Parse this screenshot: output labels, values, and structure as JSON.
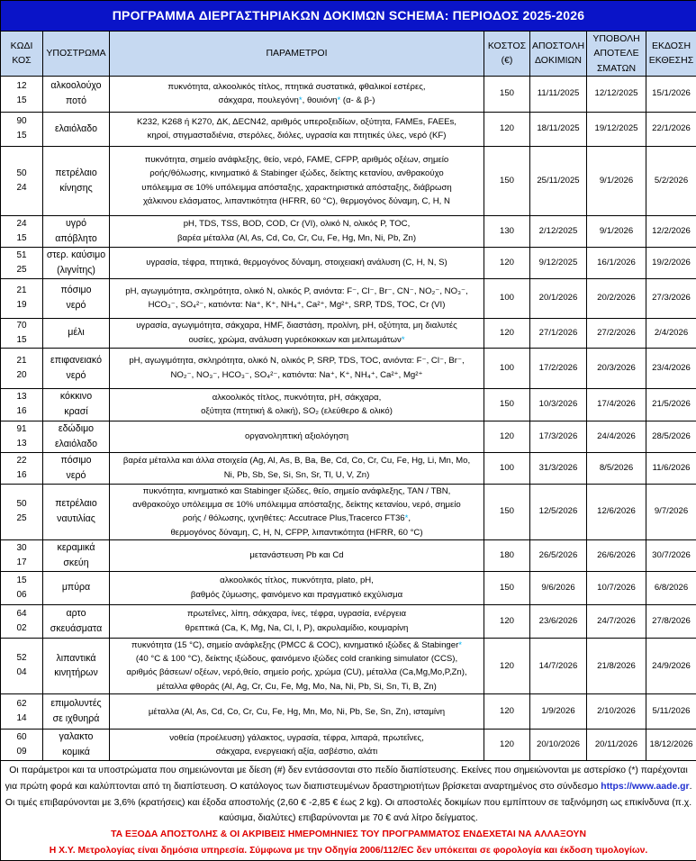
{
  "title": "ΠΡΟΓΡΑΜΜΑ ΔΙΕΡΓΑΣΤΗΡΙΑΚΩΝ ΔΟΚΙΜΩΝ SCHEMA: ΠΕΡΙΟΔΟΣ 2025-2026",
  "headers": {
    "code": [
      "ΚΩΔΙ",
      "ΚΟΣ"
    ],
    "substrate": "ΥΠΟΣΤΡΩΜΑ",
    "params": "ΠΑΡΑΜΕΤΡΟΙ",
    "cost": [
      "ΚΟΣΤΟΣ",
      "(€)"
    ],
    "dispatch": [
      "ΑΠΟΣΤΟΛΗ",
      "ΔΟΚΙΜΙΩΝ"
    ],
    "submit": [
      "ΥΠΟΒΟΛΗ",
      "ΑΠΟΤΕΛΕ",
      "ΣΜΑΤΩΝ"
    ],
    "report": [
      "ΕΚΔΟΣΗ",
      "ΕΚΘΕΣΗΣ"
    ]
  },
  "rows": [
    {
      "code": [
        "12",
        "15"
      ],
      "substrate": [
        "αλκοολούχο",
        "ποτό"
      ],
      "params": [
        "πυκνότητα, αλκοολικός τίτλος, πτητικά συστατικά, φθαλικοί εστέρες,",
        "σάκχαρα, πουλεγόνη*, θουιόνη* (α- & β-)"
      ],
      "cost": "150",
      "dispatch": "11/11/2025",
      "submit": "12/12/2025",
      "report": "15/1/2026"
    },
    {
      "code": [
        "90",
        "15"
      ],
      "substrate": [
        "ελαιόλαδο"
      ],
      "params": [
        "K232, K268 ή K270, ΔΚ, ΔECN42, αριθμός υπεροξειδίων, οξύτητα, FAMEs, FAEEs,",
        "κηροί, στιγμασταδιένια, στερόλες, διόλες, υγρασία και πτητικές ύλες, νερό (KF)"
      ],
      "cost": "120",
      "dispatch": "18/11/2025",
      "submit": "19/12/2025",
      "report": "22/1/2026"
    },
    {
      "code": [
        "50",
        "24"
      ],
      "substrate": [
        "πετρέλαιο",
        "κίνησης"
      ],
      "params": [
        "πυκνότητα, σημείο ανάφλεξης, θείο, νερό, FAME, CFPP, αριθμός οξέων, σημείο",
        "ροής/θόλωσης, κινηματικό & Stabinger ιξώδες, δείκτης κετανίου, ανθρακούχο",
        "υπόλειμμα σε 10% υπόλειμμα απόσταξης, χαρακτηριστικά απόσταξης, διάβρωση",
        "χάλκινου ελάσματος, λιπαντικότητα (HFRR, 60 °C), θερμογόνος δύναμη, C, H, N"
      ],
      "cost": "150",
      "dispatch": "25/11/2025",
      "submit": "9/1/2026",
      "report": "5/2/2026"
    },
    {
      "code": [
        "24",
        "15"
      ],
      "substrate": [
        "υγρό",
        "απόβλητο"
      ],
      "params": [
        "pH, TDS, TSS, BOD, COD, Cr (VI), ολικό N, ολικός P, TOC,",
        "βαρέα μέταλλα (Al, As, Cd, Co, Cr, Cu, Fe, Hg, Mn, Ni, Pb, Zn)"
      ],
      "cost": "130",
      "dispatch": "2/12/2025",
      "submit": "9/1/2026",
      "report": "12/2/2026"
    },
    {
      "code": [
        "51",
        "25"
      ],
      "substrate": [
        "στερ. καύσιμο",
        "(λιγνίτης)"
      ],
      "params": [
        "υγρασία, τέφρα, πτητικά, θερμογόνος δύναμη, στοιχειακή ανάλυση (C, H, N, S)"
      ],
      "cost": "120",
      "dispatch": "9/12/2025",
      "submit": "16/1/2026",
      "report": "19/2/2026"
    },
    {
      "code": [
        "21",
        "19"
      ],
      "substrate": [
        "πόσιμο",
        "νερό"
      ],
      "params": [
        "pH, αγωγιμότητα, σκληρότητα, ολικό N, ολικός P, ανιόντα: F⁻, Cl⁻, Br⁻, CN⁻, NO₂⁻, NO₃⁻,",
        "HCO₃⁻, SO₄²⁻, κατιόντα: Na⁺, K⁺, NH₄⁺, Ca²⁺, Mg²⁺, SRP, TDS, TOC, Cr (VI)"
      ],
      "cost": "100",
      "dispatch": "20/1/2026",
      "submit": "20/2/2026",
      "report": "27/3/2026"
    },
    {
      "code": [
        "70",
        "15"
      ],
      "substrate": [
        "μέλι"
      ],
      "params": [
        "υγρασία, αγωγιμότητα, σάκχαρα, HMF, διαστάση, προλίνη,  pH, οξύτητα, μη διαλυτές",
        "ουσίες, χρώμα, ανάλυση γυρεόκοκκων και μελιτωμάτων*"
      ],
      "cost": "120",
      "dispatch": "27/1/2026",
      "submit": "27/2/2026",
      "report": "2/4/2026"
    },
    {
      "code": [
        "21",
        "20"
      ],
      "substrate": [
        "επιφανειακό",
        "νερό"
      ],
      "params": [
        "pH, αγωγιμότητα, σκληρότητα, ολικό N, ολικός P, SRP, TDS, TOC, ανιόντα: F⁻, Cl⁻, Br⁻,",
        "NO₂⁻, NO₃⁻, HCO₃⁻, SO₄²⁻, κατιόντα: Na⁺, K⁺, NH₄⁺, Ca²⁺, Mg²⁺"
      ],
      "cost": "100",
      "dispatch": "17/2/2026",
      "submit": "20/3/2026",
      "report": "23/4/2026"
    },
    {
      "code": [
        "13",
        "16"
      ],
      "substrate": [
        "κόκκινο",
        "κρασί"
      ],
      "params": [
        "αλκοολικός τίτλος, πυκνότητα, pH, σάκχαρα,",
        "οξύτητα (πτητική & ολική), SO₂ (ελεύθερο & ολικό)"
      ],
      "cost": "150",
      "dispatch": "10/3/2026",
      "submit": "17/4/2026",
      "report": "21/5/2026"
    },
    {
      "code": [
        "91",
        "13"
      ],
      "substrate": [
        "εδώδιμο",
        "ελαιόλαδο"
      ],
      "params": [
        "οργανοληπτική αξιολόγηση"
      ],
      "cost": "120",
      "dispatch": "17/3/2026",
      "submit": "24/4/2026",
      "report": "28/5/2026"
    },
    {
      "code": [
        "22",
        "16"
      ],
      "substrate": [
        "πόσιμο",
        "νερό"
      ],
      "params": [
        "βαρέα μέταλλα και άλλα στοιχεία (Ag, Al, As, B, Ba, Be, Cd, Co, Cr, Cu, Fe, Hg, Li, Mn, Mo,",
        "Ni, Pb, Sb, Se, Si, Sn, Sr, Tl, U, V, Zn)"
      ],
      "cost": "100",
      "dispatch": "31/3/2026",
      "submit": "8/5/2026",
      "report": "11/6/2026"
    },
    {
      "code": [
        "50",
        "25"
      ],
      "substrate": [
        "πετρέλαιο",
        "ναυτιλίας"
      ],
      "params": [
        "πυκνότητα, κινηματικό και Stabinger ιξώδες, θείο, σημείο ανάφλεξης, TAN / TBN,",
        "ανθρακούχο υπόλειμμα σε 10% υπόλειμμα απόσταξης, δείκτης κετανίου, νερό, σημείο",
        "ροής / θόλωσης, ιχνηθέτες: Accutrace Plus,Tracerco FT36*,",
        "θερμογόνος δύναμη, C, H, N, CFPP, λιπαντικότητα (HFRR, 60 °C)"
      ],
      "cost": "150",
      "dispatch": "12/5/2026",
      "submit": "12/6/2026",
      "report": "9/7/2026"
    },
    {
      "code": [
        "30",
        "17"
      ],
      "substrate": [
        "κεραμικά",
        "σκεύη"
      ],
      "params": [
        "μετανάστευση Pb και Cd"
      ],
      "cost": "180",
      "dispatch": "26/5/2026",
      "submit": "26/6/2026",
      "report": "30/7/2026"
    },
    {
      "code": [
        "15",
        "06"
      ],
      "substrate": [
        "μπύρα"
      ],
      "params": [
        "αλκοολικός τίτλος, πυκνότητα, plato, pH,",
        "βαθμός ζύμωσης, φαινόμενο και πραγματικό εκχύλισμα"
      ],
      "cost": "150",
      "dispatch": "9/6/2026",
      "submit": "10/7/2026",
      "report": "6/8/2026"
    },
    {
      "code": [
        "64",
        "02"
      ],
      "substrate": [
        "αρτο",
        "σκευάσματα"
      ],
      "params": [
        "πρωτεΐνες, λίπη, σάκχαρα, ίνες, τέφρα, υγρασία, ενέργεια",
        "θρεπτικά (Ca, K, Mg, Na, Cl, I, P), ακρυλαμίδιο, κουμαρίνη"
      ],
      "cost": "120",
      "dispatch": "23/6/2026",
      "submit": "24/7/2026",
      "report": "27/8/2026"
    },
    {
      "code": [
        "52",
        "04"
      ],
      "substrate": [
        "λιπαντικά",
        "κινητήρων"
      ],
      "params": [
        "πυκνότητα (15 °C),  σημείο ανάφλεξης (PMCC & COC), κινηματικό ιξώδες & Stabinger*",
        "(40 °C & 100 °C), δείκτης ιξώδους, φαινόμενο ιξώδες cold cranking simulator (CCS),",
        "αριθμός βάσεων/ οξέων, νερό,θείο, σημείο ροής, χρώμα (CU), μέταλλα (Ca,Mg,Mo,P,Zn),",
        "μέταλλα φθοράς (Al, Ag, Cr, Cu, Fe, Mg, Mo, Na, Ni, Pb, Si, Sn, Ti, B, Zn)"
      ],
      "cost": "120",
      "dispatch": "14/7/2026",
      "submit": "21/8/2026",
      "report": "24/9/2026"
    },
    {
      "code": [
        "62",
        "14"
      ],
      "substrate": [
        "επιμολυντές",
        "σε ιχθυηρά"
      ],
      "params": [
        "μέταλλα (Al, As, Cd, Co, Cr, Cu, Fe, Hg, Mn, Mo, Ni, Pb, Se, Sn, Zn), ισταμίνη"
      ],
      "cost": "120",
      "dispatch": "1/9/2026",
      "submit": "2/10/2026",
      "report": "5/11/2026"
    },
    {
      "code": [
        "60",
        "09"
      ],
      "substrate": [
        "γαλακτο",
        "κομικά"
      ],
      "params": [
        "νοθεία (προέλευση) γάλακτος, υγρασία, τέφρα, λιπαρά, πρωτεΐνες,",
        "σάκχαρα, ενεργειακή αξία, ασβέστιο, αλάτι"
      ],
      "cost": "120",
      "dispatch": "20/10/2026",
      "submit": "20/11/2026",
      "report": "18/12/2026"
    }
  ],
  "footer": {
    "note_before": "Οι παράμετροι και τα υποστρώματα που σημειώνονται με δίεση (#) δεν εντάσσονται στο πεδίο διαπίστευσης. Εκείνες που σημειώνονται με αστερίσκο (*) παρέχονται για πρώτη φορά και καλύπτονται από τη διαπίστευση. Ο κατάλογος των διαπιστευμένων δραστηριοτήτων βρίσκεται αναρτημένος στο σύνδεσμο ",
    "link": "https://www.aade.gr",
    "note_after": ". Οι τιμές επιβαρύνονται με 3,6% (κρατήσεις) και έξοδα αποστολής (2,60 € -2,85 € έως 2 kg). Οι αποστολές δοκιμίων που εμπίπτουν σε ταξινόμηση ως επικίνδυνα (π.χ. καύσιμα, διαλύτες) επιβαρύνονται με 70 € ανά λίτρο δείγματος.",
    "warning": "ΤΑ ΕΞΟΔΑ ΑΠΟΣΤΟΛΗΣ & ΟΙ ΑΚΡΙΒΕΙΣ ΗΜΕΡΟΜΗΝΙΕΣ ΤΟΥ ΠΡΟΓΡΑΜΜΑΤΟΣ ΕΝΔΕΧΕΤΑΙ ΝΑ ΑΛΛΑΞΟΥΝ",
    "tax_note": "Η Χ.Υ. Μετρολογίας είναι δημόσια υπηρεσία. Σύμφωνα με την Οδηγία 2006/112/EC δεν υπόκειται σε φορολογία και έκδοση τιμολογίων."
  },
  "colors": {
    "title_bg": "#0a14c8",
    "header_bg": "#c6d9f1",
    "asterisk": "#00b0f0",
    "link": "#1f2fd0",
    "warning": "#e00000"
  }
}
